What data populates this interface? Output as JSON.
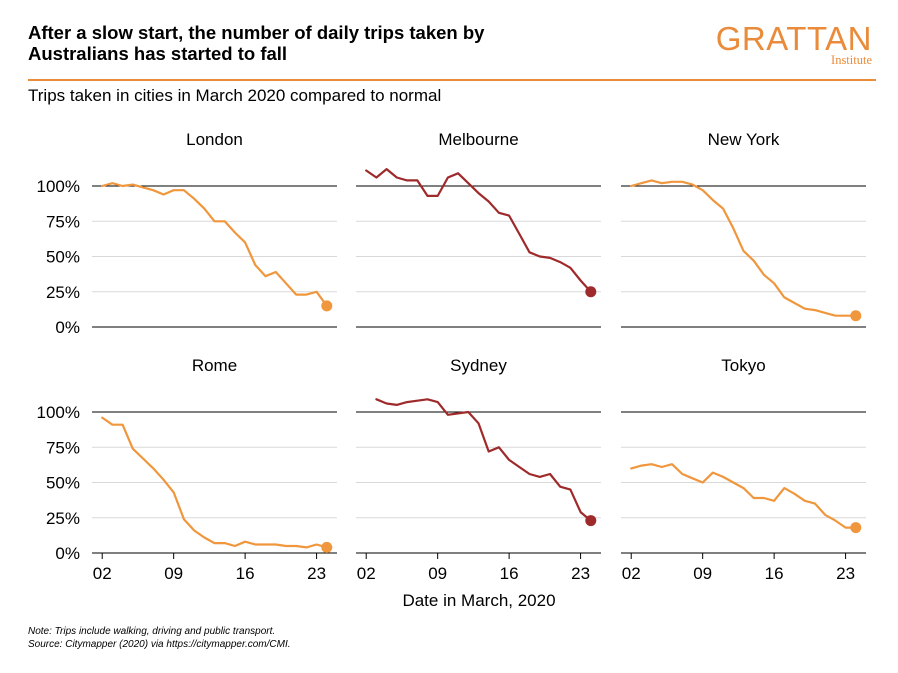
{
  "header": {
    "title_line1": "After a slow start, the number of daily trips taken by",
    "title_line2": "Australians has started to fall",
    "subtitle": "Trips taken in cities in March 2020 compared to normal",
    "logo_name": "GRATTAN",
    "logo_sub": "Institute"
  },
  "colors": {
    "orange": "#f0963c",
    "darkred": "#9e2a2b",
    "accent": "#e98b3a",
    "grid": "#d9d9d9"
  },
  "chart_data": {
    "type": "line",
    "xlabel": "Date in March, 2020",
    "ylim": [
      0,
      100
    ],
    "yticks": [
      0,
      25,
      50,
      75,
      100
    ],
    "ytick_labels": [
      "0%",
      "25%",
      "50%",
      "75%",
      "100%"
    ],
    "xlim": [
      1,
      25
    ],
    "xticks": [
      2,
      9,
      16,
      23
    ],
    "xtick_labels": [
      "02",
      "09",
      "16",
      "23"
    ],
    "reference_line": 100,
    "panels": [
      {
        "name": "London",
        "color": "orange",
        "x": [
          2,
          3,
          4,
          5,
          6,
          7,
          8,
          9,
          10,
          11,
          12,
          13,
          14,
          15,
          16,
          17,
          18,
          19,
          20,
          21,
          22,
          23,
          24
        ],
        "values": [
          100,
          102,
          100,
          101,
          99,
          97,
          94,
          97,
          97,
          91,
          84,
          75,
          75,
          67,
          60,
          44,
          36,
          39,
          31,
          23,
          23,
          25,
          15
        ]
      },
      {
        "name": "Melbourne",
        "color": "darkred",
        "x": [
          2,
          3,
          4,
          5,
          6,
          7,
          8,
          9,
          10,
          11,
          12,
          13,
          14,
          15,
          16,
          17,
          18,
          19,
          20,
          21,
          22,
          23,
          24
        ],
        "values": [
          111,
          106,
          112,
          106,
          104,
          104,
          93,
          93,
          106,
          109,
          102,
          95,
          89,
          81,
          79,
          66,
          53,
          50,
          49,
          46,
          42,
          33,
          25
        ]
      },
      {
        "name": "New York",
        "color": "orange",
        "x": [
          2,
          3,
          4,
          5,
          6,
          7,
          8,
          9,
          10,
          11,
          12,
          13,
          14,
          15,
          16,
          17,
          18,
          19,
          20,
          21,
          22,
          23,
          24
        ],
        "values": [
          100,
          102,
          104,
          102,
          103,
          103,
          101,
          97,
          90,
          84,
          70,
          54,
          47,
          37,
          31,
          21,
          17,
          13,
          12,
          10,
          8,
          8,
          8
        ]
      },
      {
        "name": "Rome",
        "color": "orange",
        "x": [
          2,
          3,
          4,
          5,
          6,
          7,
          8,
          9,
          10,
          11,
          12,
          13,
          14,
          15,
          16,
          17,
          18,
          19,
          20,
          21,
          22,
          23,
          24
        ],
        "values": [
          96,
          91,
          91,
          74,
          67,
          60,
          52,
          43,
          24,
          16,
          11,
          7,
          7,
          5,
          8,
          6,
          6,
          6,
          5,
          5,
          4,
          6,
          4
        ]
      },
      {
        "name": "Sydney",
        "color": "darkred",
        "x": [
          3,
          4,
          5,
          6,
          7,
          8,
          9,
          10,
          11,
          12,
          13,
          14,
          15,
          16,
          17,
          18,
          19,
          20,
          21,
          22,
          23,
          24
        ],
        "values": [
          109,
          106,
          105,
          107,
          108,
          109,
          107,
          98,
          99,
          100,
          92,
          72,
          75,
          66,
          61,
          56,
          54,
          56,
          47,
          45,
          29,
          23
        ]
      },
      {
        "name": "Tokyo",
        "color": "orange",
        "x": [
          2,
          3,
          4,
          5,
          6,
          7,
          8,
          9,
          10,
          11,
          12,
          13,
          14,
          15,
          16,
          17,
          18,
          19,
          20,
          21,
          22,
          23,
          24
        ],
        "values": [
          60,
          62,
          63,
          61,
          63,
          56,
          53,
          50,
          57,
          54,
          50,
          46,
          39,
          39,
          37,
          46,
          42,
          37,
          35,
          27,
          23,
          18,
          18
        ]
      }
    ]
  },
  "footer": {
    "note": "Note: Trips include walking, driving and public transport.",
    "source": "Source: Citymapper (2020) via https://citymapper.com/CMI."
  }
}
